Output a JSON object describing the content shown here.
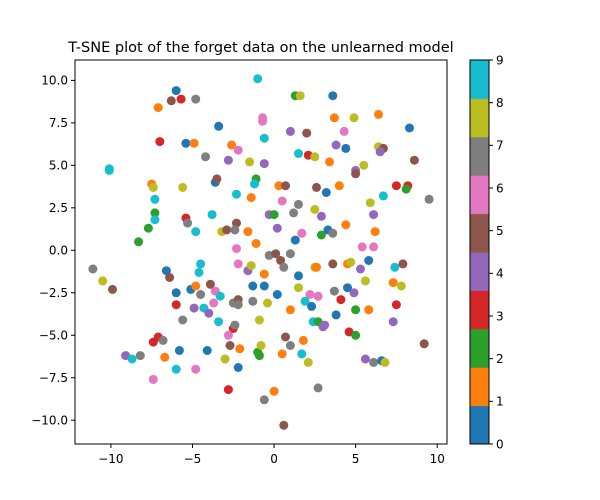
{
  "chart_data": {
    "type": "scatter",
    "title": "T-SNE plot of the forget data on the unlearned model",
    "xlabel": "",
    "ylabel": "",
    "xlim": [
      -12.2,
      10.6
    ],
    "ylim": [
      -11.4,
      11.2
    ],
    "x_ticks": [
      -10,
      -5,
      0,
      5,
      10
    ],
    "x_tick_labels": [
      "−10",
      "−5",
      "0",
      "5",
      "10"
    ],
    "y_ticks": [
      -10,
      -7.5,
      -5,
      -2.5,
      0,
      2.5,
      5,
      7.5,
      10
    ],
    "y_tick_labels": [
      "−10.0",
      "−7.5",
      "−5.0",
      "−2.5",
      "0.0",
      "2.5",
      "5.0",
      "7.5",
      "10.0"
    ],
    "grid": false,
    "colormap": "tab10",
    "colors": [
      "#1f77b4",
      "#ff7f0e",
      "#2ca02c",
      "#d62728",
      "#9467bd",
      "#8c564b",
      "#e377c2",
      "#7f7f7f",
      "#bcbd22",
      "#17becf"
    ],
    "colorbar": {
      "min": 0,
      "max": 9,
      "ticks": [
        0,
        1,
        2,
        3,
        4,
        5,
        6,
        7,
        8,
        9
      ],
      "tick_labels": [
        "0",
        "1",
        "2",
        "3",
        "4",
        "5",
        "6",
        "7",
        "8",
        "9"
      ]
    },
    "points": [
      {
        "x": -1.0,
        "y": 10.1,
        "label": 9
      },
      {
        "x": 1.3,
        "y": 9.1,
        "label": 2
      },
      {
        "x": 1.6,
        "y": 9.1,
        "label": 8
      },
      {
        "x": 3.6,
        "y": 9.1,
        "label": 0
      },
      {
        "x": -6.0,
        "y": 9.4,
        "label": 0
      },
      {
        "x": -5.7,
        "y": 8.9,
        "label": 3
      },
      {
        "x": -6.3,
        "y": 8.8,
        "label": 5
      },
      {
        "x": -4.8,
        "y": 8.9,
        "label": 7
      },
      {
        "x": -7.1,
        "y": 8.4,
        "label": 1
      },
      {
        "x": -0.7,
        "y": 7.8,
        "label": 6
      },
      {
        "x": -0.7,
        "y": 7.6,
        "label": 6
      },
      {
        "x": 3.7,
        "y": 7.8,
        "label": 1
      },
      {
        "x": 4.9,
        "y": 7.8,
        "label": 8
      },
      {
        "x": 6.4,
        "y": 8.0,
        "label": 1
      },
      {
        "x": -3.4,
        "y": 7.3,
        "label": 0
      },
      {
        "x": 8.3,
        "y": 7.2,
        "label": 0
      },
      {
        "x": 1.0,
        "y": 7.0,
        "label": 4
      },
      {
        "x": 2.0,
        "y": 6.9,
        "label": 5
      },
      {
        "x": 4.3,
        "y": 7.0,
        "label": 6
      },
      {
        "x": -0.6,
        "y": 6.6,
        "label": 9
      },
      {
        "x": -7.0,
        "y": 6.4,
        "label": 3
      },
      {
        "x": -5.4,
        "y": 6.3,
        "label": 0
      },
      {
        "x": -4.9,
        "y": 6.3,
        "label": 1
      },
      {
        "x": -2.6,
        "y": 6.2,
        "label": 1
      },
      {
        "x": -2.2,
        "y": 5.9,
        "label": 6
      },
      {
        "x": 3.8,
        "y": 6.2,
        "label": 4
      },
      {
        "x": 4.4,
        "y": 6.0,
        "label": 0
      },
      {
        "x": 6.4,
        "y": 6.1,
        "label": 8
      },
      {
        "x": 6.7,
        "y": 6.0,
        "label": 5
      },
      {
        "x": 6.5,
        "y": 5.8,
        "label": 4
      },
      {
        "x": -4.2,
        "y": 5.5,
        "label": 7
      },
      {
        "x": -2.8,
        "y": 5.3,
        "label": 4
      },
      {
        "x": -1.5,
        "y": 5.2,
        "label": 8
      },
      {
        "x": -0.6,
        "y": 5.1,
        "label": 4
      },
      {
        "x": 1.5,
        "y": 5.7,
        "label": 9
      },
      {
        "x": 2.1,
        "y": 5.6,
        "label": 3
      },
      {
        "x": 2.5,
        "y": 5.5,
        "label": 8
      },
      {
        "x": 3.4,
        "y": 5.2,
        "label": 1
      },
      {
        "x": 5.0,
        "y": 4.7,
        "label": 4
      },
      {
        "x": 5.5,
        "y": 5.0,
        "label": 8
      },
      {
        "x": 8.6,
        "y": 5.3,
        "label": 5
      },
      {
        "x": -3.6,
        "y": 4.0,
        "label": 0
      },
      {
        "x": -3.5,
        "y": 4.2,
        "label": 5
      },
      {
        "x": -1.1,
        "y": 4.2,
        "label": 2
      },
      {
        "x": -1.2,
        "y": 3.9,
        "label": 9
      },
      {
        "x": 0.3,
        "y": 3.8,
        "label": 1
      },
      {
        "x": 0.7,
        "y": 3.8,
        "label": 5
      },
      {
        "x": 2.6,
        "y": 3.7,
        "label": 5
      },
      {
        "x": 3.2,
        "y": 3.4,
        "label": 0
      },
      {
        "x": 4.0,
        "y": 3.8,
        "label": 1
      },
      {
        "x": 5.0,
        "y": 4.5,
        "label": 5
      },
      {
        "x": 6.7,
        "y": 3.2,
        "label": 9
      },
      {
        "x": 7.5,
        "y": 3.8,
        "label": 3
      },
      {
        "x": 8.2,
        "y": 3.8,
        "label": 3
      },
      {
        "x": 8.1,
        "y": 3.6,
        "label": 2
      },
      {
        "x": 9.5,
        "y": 3.0,
        "label": 7
      },
      {
        "x": -7.5,
        "y": 3.9,
        "label": 1
      },
      {
        "x": -7.4,
        "y": 3.7,
        "label": 8
      },
      {
        "x": -5.6,
        "y": 3.7,
        "label": 8
      },
      {
        "x": -7.3,
        "y": 3.0,
        "label": 9
      },
      {
        "x": -2.3,
        "y": 3.3,
        "label": 9
      },
      {
        "x": -1.4,
        "y": 3.1,
        "label": 1
      },
      {
        "x": 0.5,
        "y": 2.9,
        "label": 6
      },
      {
        "x": 1.5,
        "y": 2.7,
        "label": 7
      },
      {
        "x": 2.5,
        "y": 2.4,
        "label": 8
      },
      {
        "x": 2.9,
        "y": 2.0,
        "label": 4
      },
      {
        "x": 5.9,
        "y": 2.8,
        "label": 8
      },
      {
        "x": 6.1,
        "y": 2.1,
        "label": 4
      },
      {
        "x": -10.1,
        "y": 4.8,
        "label": 9
      },
      {
        "x": -10.1,
        "y": 4.7,
        "label": 9
      },
      {
        "x": -7.3,
        "y": 2.2,
        "label": 2
      },
      {
        "x": -7.3,
        "y": 1.8,
        "label": 9
      },
      {
        "x": -5.4,
        "y": 1.9,
        "label": 3
      },
      {
        "x": -5.3,
        "y": 1.6,
        "label": 7
      },
      {
        "x": -3.8,
        "y": 2.1,
        "label": 9
      },
      {
        "x": -2.3,
        "y": 1.6,
        "label": 5
      },
      {
        "x": -0.3,
        "y": 2.1,
        "label": 4
      },
      {
        "x": 0.0,
        "y": 2.1,
        "label": 2
      },
      {
        "x": 1.2,
        "y": 2.2,
        "label": 7
      },
      {
        "x": 3.3,
        "y": 1.2,
        "label": 0
      },
      {
        "x": 4.4,
        "y": 1.5,
        "label": 1
      },
      {
        "x": 6.2,
        "y": 1.1,
        "label": 1
      },
      {
        "x": -7.7,
        "y": 1.3,
        "label": 2
      },
      {
        "x": -4.8,
        "y": 1.1,
        "label": 9
      },
      {
        "x": -3.2,
        "y": 1.1,
        "label": 8
      },
      {
        "x": -2.9,
        "y": 1.2,
        "label": 5
      },
      {
        "x": -2.4,
        "y": 1.2,
        "label": 7
      },
      {
        "x": -1.6,
        "y": 1.1,
        "label": 1
      },
      {
        "x": 0.2,
        "y": 1.3,
        "label": 4
      },
      {
        "x": 1.7,
        "y": 1.0,
        "label": 6
      },
      {
        "x": 2.9,
        "y": 0.9,
        "label": 2
      },
      {
        "x": 3.6,
        "y": 1.0,
        "label": 7
      },
      {
        "x": -8.3,
        "y": 0.5,
        "label": 2
      },
      {
        "x": -2.3,
        "y": 0.1,
        "label": 6
      },
      {
        "x": -1.1,
        "y": 0.4,
        "label": 1
      },
      {
        "x": 1.3,
        "y": 0.6,
        "label": 0
      },
      {
        "x": 5.4,
        "y": 0.2,
        "label": 6
      },
      {
        "x": 6.1,
        "y": 0.2,
        "label": 6
      },
      {
        "x": -11.1,
        "y": -1.1,
        "label": 7
      },
      {
        "x": -10.5,
        "y": -1.8,
        "label": 8
      },
      {
        "x": -9.9,
        "y": -2.3,
        "label": 5
      },
      {
        "x": -6.6,
        "y": -1.2,
        "label": 0
      },
      {
        "x": -6.4,
        "y": -1.6,
        "label": 5
      },
      {
        "x": -4.5,
        "y": -0.8,
        "label": 9
      },
      {
        "x": -4.6,
        "y": -1.3,
        "label": 9
      },
      {
        "x": -2.2,
        "y": -0.8,
        "label": 6
      },
      {
        "x": -1.6,
        "y": -1.2,
        "label": 4
      },
      {
        "x": -1.4,
        "y": -0.9,
        "label": 8
      },
      {
        "x": -0.6,
        "y": -1.4,
        "label": 1
      },
      {
        "x": -0.3,
        "y": -0.3,
        "label": 7
      },
      {
        "x": 0.1,
        "y": -0.2,
        "label": 5
      },
      {
        "x": 0.4,
        "y": -0.6,
        "label": 5
      },
      {
        "x": 0.6,
        "y": -1.0,
        "label": 7
      },
      {
        "x": 1.0,
        "y": -0.2,
        "label": 7
      },
      {
        "x": 1.5,
        "y": -1.5,
        "label": 0
      },
      {
        "x": 2.5,
        "y": -1.0,
        "label": 8
      },
      {
        "x": 2.6,
        "y": -1.0,
        "label": 1
      },
      {
        "x": 3.6,
        "y": -0.8,
        "label": 5
      },
      {
        "x": 4.5,
        "y": -0.8,
        "label": 1
      },
      {
        "x": 4.7,
        "y": -0.7,
        "label": 8
      },
      {
        "x": 5.3,
        "y": -1.1,
        "label": 4
      },
      {
        "x": 5.8,
        "y": -0.6,
        "label": 0
      },
      {
        "x": 7.4,
        "y": -1.0,
        "label": 9
      },
      {
        "x": 7.9,
        "y": -0.8,
        "label": 5
      },
      {
        "x": 5.6,
        "y": -1.8,
        "label": 8
      },
      {
        "x": 7.3,
        "y": -1.9,
        "label": 1
      },
      {
        "x": 7.8,
        "y": -2.1,
        "label": 8
      },
      {
        "x": -6.0,
        "y": -2.5,
        "label": 0
      },
      {
        "x": -5.1,
        "y": -2.3,
        "label": 0
      },
      {
        "x": -4.8,
        "y": -2.1,
        "label": 1
      },
      {
        "x": -3.9,
        "y": -2.0,
        "label": 5
      },
      {
        "x": -4.5,
        "y": -2.6,
        "label": 7
      },
      {
        "x": -3.6,
        "y": -2.4,
        "label": 6
      },
      {
        "x": -3.3,
        "y": -2.7,
        "label": 9
      },
      {
        "x": -1.3,
        "y": -2.1,
        "label": 0
      },
      {
        "x": -0.6,
        "y": -2.1,
        "label": 0
      },
      {
        "x": 0.2,
        "y": -2.6,
        "label": 0
      },
      {
        "x": 1.5,
        "y": -2.2,
        "label": 8
      },
      {
        "x": 2.2,
        "y": -2.6,
        "label": 6
      },
      {
        "x": 2.7,
        "y": -2.7,
        "label": 6
      },
      {
        "x": 3.7,
        "y": -2.4,
        "label": 7
      },
      {
        "x": 4.1,
        "y": -2.9,
        "label": 3
      },
      {
        "x": 4.5,
        "y": -2.2,
        "label": 0
      },
      {
        "x": 4.9,
        "y": -2.5,
        "label": 4
      },
      {
        "x": -6.0,
        "y": -3.2,
        "label": 3
      },
      {
        "x": -4.3,
        "y": -3.4,
        "label": 9
      },
      {
        "x": -4.0,
        "y": -3.7,
        "label": 4
      },
      {
        "x": -3.7,
        "y": -3.1,
        "label": 6
      },
      {
        "x": -2.5,
        "y": -3.1,
        "label": 7
      },
      {
        "x": -2.2,
        "y": -2.9,
        "label": 5
      },
      {
        "x": -2.2,
        "y": -3.2,
        "label": 7
      },
      {
        "x": -1.3,
        "y": -3.0,
        "label": 7
      },
      {
        "x": -0.4,
        "y": -3.1,
        "label": 8
      },
      {
        "x": 1.9,
        "y": -3.0,
        "label": 9
      },
      {
        "x": 2.3,
        "y": -3.3,
        "label": 0
      },
      {
        "x": 2.4,
        "y": -4.2,
        "label": 9
      },
      {
        "x": 2.7,
        "y": -4.2,
        "label": 2
      },
      {
        "x": 3.1,
        "y": -4.4,
        "label": 4
      },
      {
        "x": 3.0,
        "y": -4.5,
        "label": 4
      },
      {
        "x": 3.8,
        "y": -3.8,
        "label": 0
      },
      {
        "x": 5.0,
        "y": -3.5,
        "label": 2
      },
      {
        "x": 5.8,
        "y": -3.5,
        "label": 1
      },
      {
        "x": 7.5,
        "y": -3.2,
        "label": 3
      },
      {
        "x": -5.6,
        "y": -4.1,
        "label": 7
      },
      {
        "x": -4.9,
        "y": -3.4,
        "label": 4
      },
      {
        "x": -3.4,
        "y": -4.2,
        "label": 9
      },
      {
        "x": -2.5,
        "y": -4.6,
        "label": 3
      },
      {
        "x": -2.8,
        "y": -5.0,
        "label": 6
      },
      {
        "x": -2.4,
        "y": -4.4,
        "label": 7
      },
      {
        "x": -0.9,
        "y": -4.1,
        "label": 8
      },
      {
        "x": 1.0,
        "y": -3.5,
        "label": 1
      },
      {
        "x": 0.7,
        "y": -5.1,
        "label": 5
      },
      {
        "x": 1.0,
        "y": -5.6,
        "label": 7
      },
      {
        "x": 1.8,
        "y": -5.3,
        "label": 1
      },
      {
        "x": 4.6,
        "y": -4.8,
        "label": 3
      },
      {
        "x": 5.0,
        "y": -5.0,
        "label": 2
      },
      {
        "x": 7.3,
        "y": -4.2,
        "label": 4
      },
      {
        "x": 9.2,
        "y": -5.5,
        "label": 5
      },
      {
        "x": -7.1,
        "y": -5.1,
        "label": 3
      },
      {
        "x": -7.4,
        "y": -5.4,
        "label": 3
      },
      {
        "x": -6.8,
        "y": -5.3,
        "label": 7
      },
      {
        "x": -5.8,
        "y": -5.9,
        "label": 0
      },
      {
        "x": -6.7,
        "y": -6.3,
        "label": 1
      },
      {
        "x": -4.1,
        "y": -5.9,
        "label": 0
      },
      {
        "x": -2.7,
        "y": -5.6,
        "label": 5
      },
      {
        "x": -2.1,
        "y": -5.8,
        "label": 1
      },
      {
        "x": -1.0,
        "y": -6.0,
        "label": 2
      },
      {
        "x": -0.9,
        "y": -6.2,
        "label": 2
      },
      {
        "x": -0.8,
        "y": -5.6,
        "label": 8
      },
      {
        "x": 0.5,
        "y": -6.1,
        "label": 1
      },
      {
        "x": 1.7,
        "y": -6.1,
        "label": 9
      },
      {
        "x": 2.1,
        "y": -6.6,
        "label": 8
      },
      {
        "x": 5.6,
        "y": -6.4,
        "label": 4
      },
      {
        "x": 6.1,
        "y": -6.6,
        "label": 7
      },
      {
        "x": 6.6,
        "y": -6.5,
        "label": 0
      },
      {
        "x": 6.8,
        "y": -6.6,
        "label": 8
      },
      {
        "x": -9.1,
        "y": -6.2,
        "label": 4
      },
      {
        "x": -8.7,
        "y": -6.4,
        "label": 9
      },
      {
        "x": -8.2,
        "y": -6.2,
        "label": 7
      },
      {
        "x": -6.0,
        "y": -7.0,
        "label": 9
      },
      {
        "x": -4.8,
        "y": -7.0,
        "label": 6
      },
      {
        "x": -3.0,
        "y": -6.4,
        "label": 8
      },
      {
        "x": -2.2,
        "y": -6.9,
        "label": 0
      },
      {
        "x": -7.4,
        "y": -7.6,
        "label": 6
      },
      {
        "x": -2.8,
        "y": -8.2,
        "label": 3
      },
      {
        "x": -0.6,
        "y": -8.8,
        "label": 7
      },
      {
        "x": 0.0,
        "y": -8.3,
        "label": 1
      },
      {
        "x": 2.7,
        "y": -8.1,
        "label": 7
      },
      {
        "x": 0.6,
        "y": -10.3,
        "label": 5
      }
    ]
  }
}
